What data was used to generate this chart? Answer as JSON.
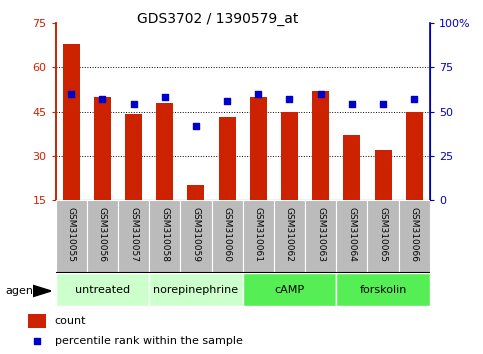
{
  "title": "GDS3702 / 1390579_at",
  "samples": [
    "GSM310055",
    "GSM310056",
    "GSM310057",
    "GSM310058",
    "GSM310059",
    "GSM310060",
    "GSM310061",
    "GSM310062",
    "GSM310063",
    "GSM310064",
    "GSM310065",
    "GSM310066"
  ],
  "counts": [
    68,
    50,
    44,
    48,
    20,
    43,
    50,
    45,
    52,
    37,
    32,
    45
  ],
  "percentile": [
    60,
    57,
    54,
    58,
    42,
    56,
    60,
    57,
    60,
    54,
    54,
    57
  ],
  "ylim_left": [
    15,
    75
  ],
  "ylim_right": [
    0,
    100
  ],
  "yticks_left": [
    15,
    30,
    45,
    60,
    75
  ],
  "yticks_right": [
    0,
    25,
    50,
    75,
    100
  ],
  "ytick_labels_right": [
    "0",
    "25",
    "50",
    "75",
    "100%"
  ],
  "bar_color": "#cc2200",
  "dot_color": "#0000cc",
  "groups": [
    {
      "label": "untreated",
      "start": 0,
      "end": 3,
      "color": "#ccffcc"
    },
    {
      "label": "norepinephrine",
      "start": 3,
      "end": 6,
      "color": "#ccffcc"
    },
    {
      "label": "cAMP",
      "start": 6,
      "end": 9,
      "color": "#55ee55"
    },
    {
      "label": "forskolin",
      "start": 9,
      "end": 12,
      "color": "#55ee55"
    }
  ],
  "tick_bg_color": "#bbbbbb",
  "xlabel_agent": "agent",
  "grid_yticks": [
    30,
    45,
    60
  ],
  "left_spine_color": "#cc2200",
  "right_spine_color": "#0000cc"
}
